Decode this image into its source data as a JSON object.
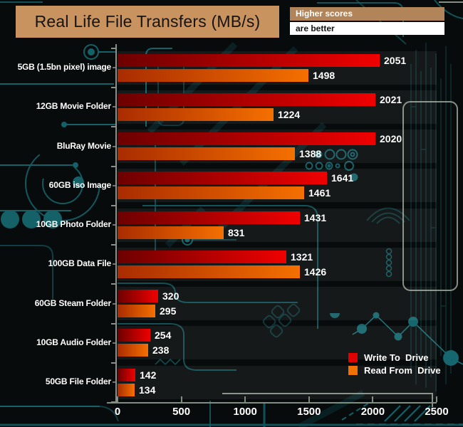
{
  "title": "Real Life File Transfers (MB/s)",
  "note": {
    "line1": "Higher scores",
    "line2": "are better"
  },
  "legend": {
    "items": [
      {
        "label": "Write To  Drive",
        "color": "#e10000"
      },
      {
        "label": "Read From  Drive",
        "color": "#f07000"
      }
    ]
  },
  "colors": {
    "background": "#080b0b",
    "banner_bg": "#c9935f",
    "banner_text": "#171310",
    "note_header_bg": "#b2845a",
    "note_header_text": "#ffffff",
    "note_body_bg": "#ffffff",
    "note_body_text": "#111111",
    "circuit_teal": "#156168",
    "axis_vertical": "#8a8f8a",
    "axis_horizontal": "#7f8e80",
    "row_band": "rgba(255,255,255,0.06)",
    "write_bar_start": "#6d0000",
    "write_bar_end": "#f00000",
    "read_bar_start": "#a92c00",
    "read_bar_end": "#f57000",
    "value_text": "#ffffff",
    "category_text": "#ffffff"
  },
  "chart_data": {
    "type": "bar",
    "orientation": "horizontal",
    "title": "Real Life File Transfers (MB/s)",
    "categories": [
      "5GB (1.5bn pixel) image",
      "12GB Movie Folder",
      "BluRay Movie",
      "60GB iso Image",
      "10GB Photo Folder",
      "100GB Data File",
      "60GB Steam Folder",
      "10GB Audio Folder",
      "50GB File Folder"
    ],
    "series": [
      {
        "name": "Write To  Drive",
        "values": [
          2051,
          2021,
          2020,
          1641,
          1431,
          1321,
          320,
          254,
          142
        ]
      },
      {
        "name": "Read From  Drive",
        "values": [
          1498,
          1224,
          1388,
          1461,
          831,
          1426,
          295,
          238,
          134
        ]
      }
    ],
    "xlim": [
      0,
      2500
    ],
    "xticks": [
      0,
      500,
      1000,
      1500,
      2000,
      2500
    ],
    "xlabel": "",
    "ylabel": "",
    "legend_position": "bottom-right",
    "grid": false,
    "higher_is_better": true
  }
}
